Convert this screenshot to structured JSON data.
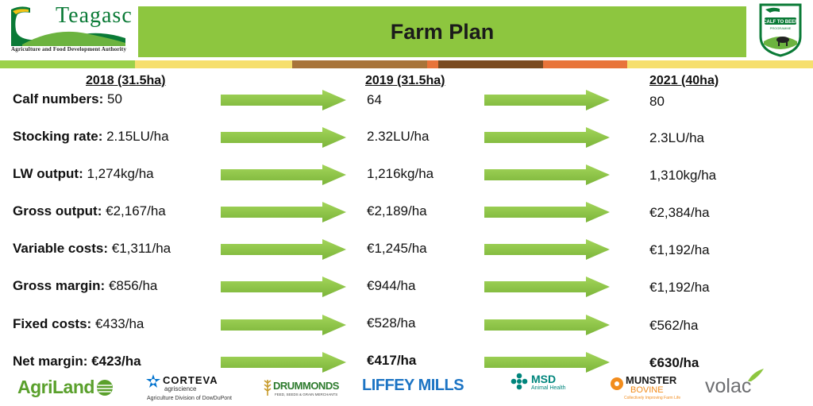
{
  "header": {
    "logo_text": "Teagasc",
    "logo_tagline": "Agriculture and Food Development Authority",
    "title": "Farm Plan",
    "badge": {
      "line1": "CALF TO BEEF",
      "line2": "PROGRAMME"
    }
  },
  "columns": {
    "y2018": "2018 (31.5ha)",
    "y2019": "2019 (31.5ha)",
    "y2021": "2021 (40ha)"
  },
  "rows": [
    {
      "label": "Calf numbers:",
      "v2018": "50",
      "v2019": "64",
      "v2021": "80"
    },
    {
      "label": "Stocking rate:",
      "v2018": "2.15LU/ha",
      "v2019": "2.32LU/ha",
      "v2021": "2.3LU/ha"
    },
    {
      "label": "LW output:",
      "v2018": "1,274kg/ha",
      "v2019": "1,216kg/ha",
      "v2021": "1,310kg/ha"
    },
    {
      "label": "Gross output:",
      "v2018": "€2,167/ha",
      "v2019": "€2,189/ha",
      "v2021": "€2,384/ha"
    },
    {
      "label": "Variable costs:",
      "v2018": "€1,311/ha",
      "v2019": "€1,245/ha",
      "v2021": "€1,192/ha"
    },
    {
      "label": "Gross margin:",
      "v2018": "€856/ha",
      "v2019": "€944/ha",
      "v2021": "€1,192/ha"
    },
    {
      "label": "Fixed costs:",
      "v2018": "€433/ha",
      "v2019": "€528/ha",
      "v2021": "€562/ha"
    },
    {
      "label": "Net margin:",
      "v2018": "€423/ha",
      "v2019": "€417/ha",
      "v2021": "€630/ha"
    }
  ],
  "sponsors": {
    "agriland": "AgriLand",
    "corteva": "CORTEVA",
    "corteva_sub": "agriscience",
    "corteva_div": "Agriculture Division of DowDuPont",
    "drummonds": "DRUMMONDS",
    "drummonds_sub": "FEED, SEEDS & GRAIN MERCHANTS",
    "liffey": "LIFFEY MILLS",
    "msd": "MSD",
    "msd_sub": "Animal Health",
    "munster": "MUNSTER",
    "munster_sub": "BOVINE",
    "munster_tag": "Collectively Improving Farm Life",
    "volac": "volac"
  },
  "colors": {
    "banner_green": "#8dc63f",
    "arrow_green": "#8cc63f",
    "teagasc_green": "#0a7a36"
  }
}
